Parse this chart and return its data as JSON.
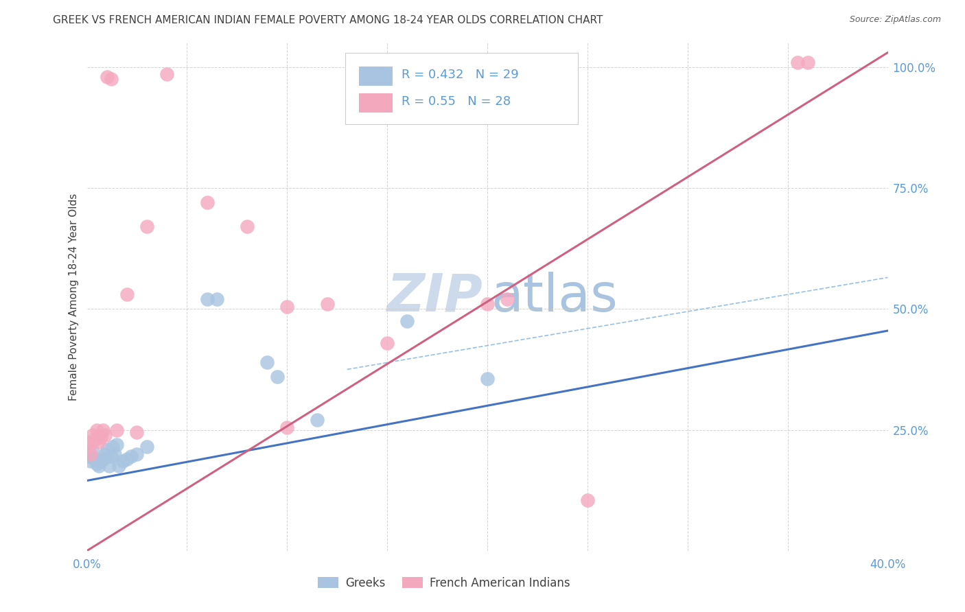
{
  "title": "GREEK VS FRENCH AMERICAN INDIAN FEMALE POVERTY AMONG 18-24 YEAR OLDS CORRELATION CHART",
  "source": "Source: ZipAtlas.com",
  "ylabel": "Female Poverty Among 18-24 Year Olds",
  "xlim": [
    0.0,
    0.4
  ],
  "ylim": [
    0.0,
    1.05
  ],
  "greek_R": 0.432,
  "greek_N": 29,
  "french_R": 0.55,
  "french_N": 28,
  "greek_color": "#a8c4e0",
  "french_color": "#f4a8be",
  "greek_line_color": "#4472c4",
  "french_line_color": "#d06080",
  "dashed_line_color": "#7fb0e0",
  "grid_color": "#c8c8c8",
  "title_color": "#404040",
  "label_color": "#5b9bd5",
  "watermark_zip_color": "#ccdaec",
  "watermark_atlas_color": "#a8c4e0",
  "greek_line_x0": 0.0,
  "greek_line_y0": 0.145,
  "greek_line_x1": 0.4,
  "greek_line_y1": 0.455,
  "french_line_x0": 0.0,
  "french_line_y0": 0.0,
  "french_line_x1": 0.4,
  "french_line_y1": 1.03,
  "dashed_line_x0": 0.13,
  "dashed_line_y0": 0.375,
  "dashed_line_x1": 0.4,
  "dashed_line_y1": 0.565,
  "greek_x": [
    0.0,
    0.001,
    0.002,
    0.003,
    0.004,
    0.005,
    0.006,
    0.007,
    0.008,
    0.009,
    0.01,
    0.011,
    0.012,
    0.013,
    0.014,
    0.015,
    0.016,
    0.018,
    0.02,
    0.022,
    0.025,
    0.03,
    0.06,
    0.065,
    0.09,
    0.095,
    0.115,
    0.16,
    0.2
  ],
  "greek_y": [
    0.2,
    0.195,
    0.185,
    0.205,
    0.19,
    0.18,
    0.175,
    0.185,
    0.19,
    0.2,
    0.21,
    0.175,
    0.195,
    0.215,
    0.2,
    0.22,
    0.175,
    0.185,
    0.19,
    0.195,
    0.2,
    0.215,
    0.52,
    0.52,
    0.39,
    0.36,
    0.27,
    0.475,
    0.355
  ],
  "french_x": [
    0.0,
    0.001,
    0.002,
    0.003,
    0.004,
    0.005,
    0.006,
    0.007,
    0.008,
    0.009,
    0.01,
    0.012,
    0.015,
    0.02,
    0.025,
    0.03,
    0.04,
    0.06,
    0.08,
    0.1,
    0.1,
    0.12,
    0.15,
    0.2,
    0.21,
    0.25,
    0.355,
    0.36
  ],
  "french_y": [
    0.225,
    0.215,
    0.2,
    0.24,
    0.23,
    0.25,
    0.225,
    0.235,
    0.25,
    0.24,
    0.98,
    0.975,
    0.25,
    0.53,
    0.245,
    0.67,
    0.985,
    0.72,
    0.67,
    0.255,
    0.505,
    0.51,
    0.43,
    0.51,
    0.52,
    0.105,
    1.01,
    1.01
  ]
}
